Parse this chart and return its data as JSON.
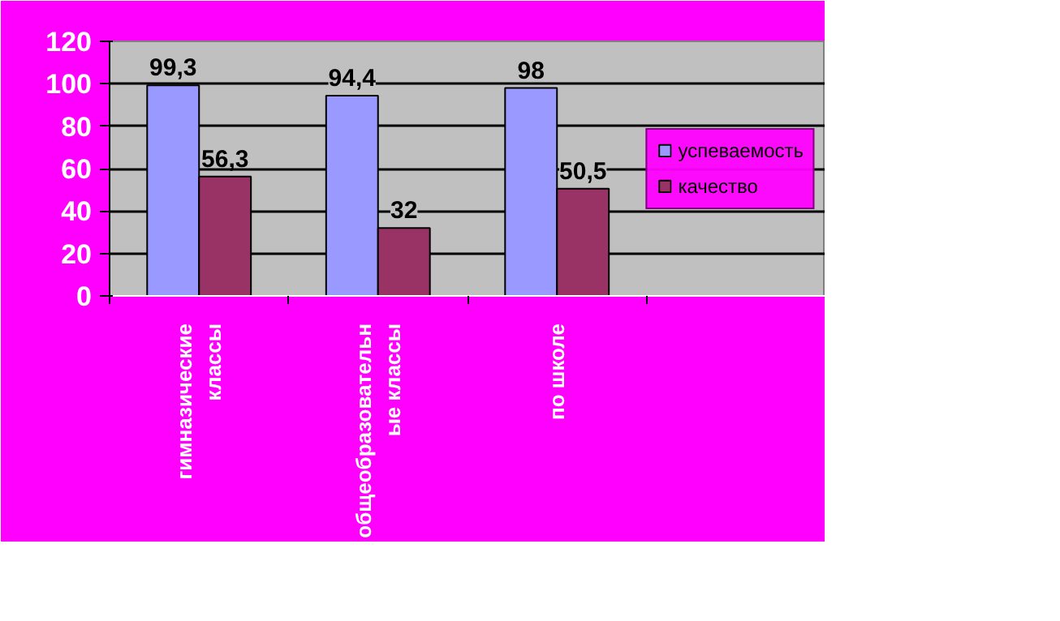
{
  "chart_data": {
    "type": "bar",
    "categories": [
      "гимназические\nклассы",
      "общеобразовательн\nые классы",
      "по школе",
      null
    ],
    "series": [
      {
        "name": "успеваемость",
        "color": "#9999ff",
        "values": [
          99.3,
          94.4,
          98,
          null
        ],
        "value_labels": [
          "99,3",
          "94,4",
          "98",
          null
        ]
      },
      {
        "name": "качество",
        "color": "#993366",
        "values": [
          56.3,
          32,
          50.5,
          null
        ],
        "value_labels": [
          "56,3",
          "32",
          "50,5",
          null
        ]
      }
    ],
    "ylim": [
      0,
      120
    ],
    "yticks": [
      0,
      20,
      40,
      60,
      80,
      100,
      120
    ],
    "grid": "y",
    "legend": "right"
  }
}
